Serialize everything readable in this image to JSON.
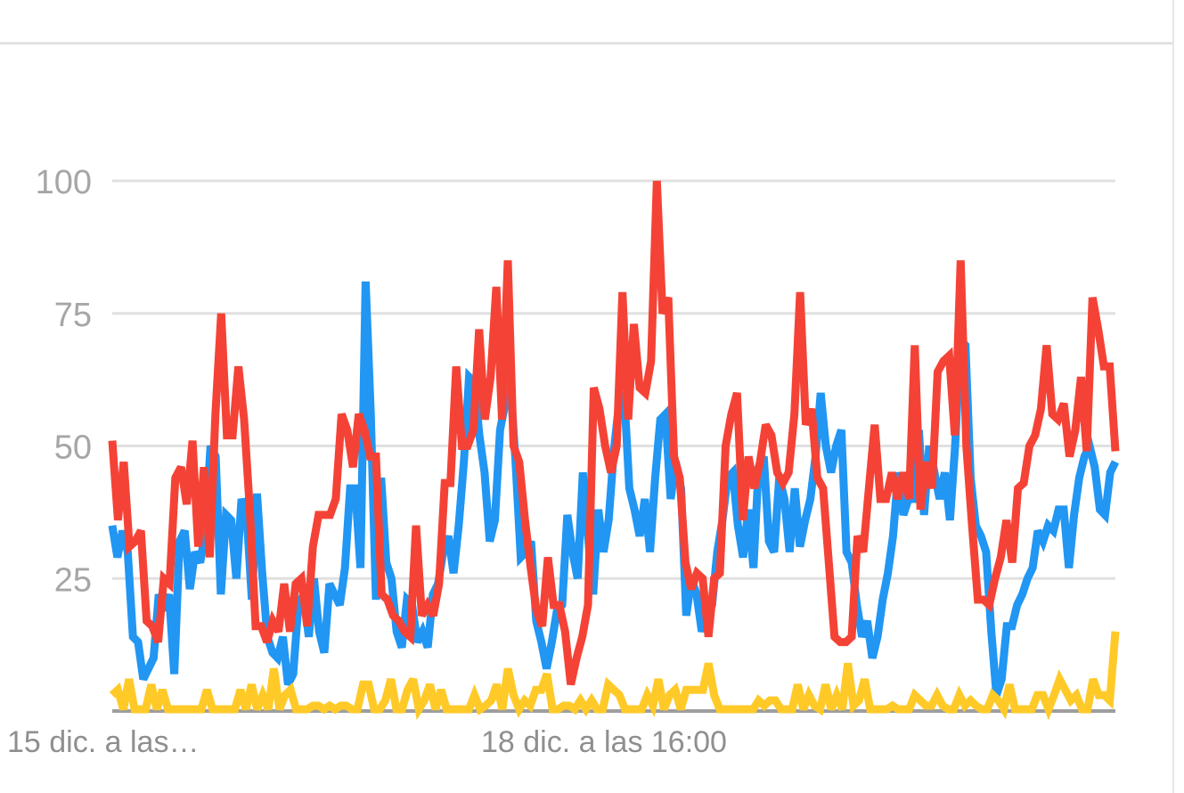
{
  "chart_data": {
    "type": "line",
    "title": "",
    "xlabel": "",
    "ylabel": "",
    "ylim": [
      0,
      100
    ],
    "yticks": [
      25,
      50,
      75,
      100
    ],
    "ytick_labels": [
      "25",
      "50",
      "75",
      "100"
    ],
    "x_tick_labels": [
      "15 dic. a las…",
      "18 dic. a las 16:00"
    ],
    "grid": true,
    "series": [
      {
        "color": "#2196f3",
        "values": [
          35,
          29,
          34,
          30,
          14,
          13,
          6,
          8,
          10,
          22,
          19,
          22,
          7,
          32,
          34,
          23,
          30,
          28,
          34,
          50,
          48,
          22,
          37,
          36,
          25,
          40,
          37,
          21,
          41,
          26,
          14,
          11,
          10,
          14,
          5,
          7,
          20,
          22,
          14,
          25,
          15,
          11,
          24,
          22,
          20,
          27,
          42,
          42,
          27,
          81,
          56,
          21,
          44,
          28,
          25,
          15,
          12,
          21,
          20,
          13,
          15,
          12,
          22,
          24,
          30,
          33,
          26,
          35,
          47,
          63,
          62,
          52,
          45,
          32,
          36,
          53,
          58,
          62,
          47,
          29,
          30,
          32,
          17,
          13,
          8,
          13,
          19,
          20,
          37,
          30,
          25,
          45,
          33,
          22,
          38,
          30,
          36,
          49,
          58,
          60,
          42,
          38,
          33,
          40,
          30,
          44,
          55,
          56,
          40,
          47,
          42,
          18,
          25,
          22,
          15,
          18,
          20,
          30,
          36,
          44,
          45,
          35,
          29,
          38,
          27,
          46,
          48,
          32,
          30,
          44,
          40,
          30,
          42,
          31,
          36,
          40,
          48,
          60,
          50,
          45,
          50,
          53,
          30,
          28,
          20,
          14,
          17,
          10,
          14,
          21,
          26,
          33,
          45,
          37,
          40,
          40,
          53,
          37,
          50,
          45,
          40,
          45,
          36,
          50,
          70,
          69,
          44,
          35,
          33,
          30,
          15,
          3,
          6,
          16,
          16,
          20,
          22,
          25,
          27,
          34,
          32,
          35,
          34,
          38,
          38,
          27,
          37,
          44,
          48,
          50,
          46,
          38,
          37,
          45,
          47
        ]
      },
      {
        "color": "#f44336",
        "values": [
          51,
          36,
          47,
          31,
          32,
          34,
          17,
          16,
          13,
          25,
          24,
          44,
          46,
          39,
          51,
          31,
          46,
          29,
          56,
          75,
          52,
          52,
          65,
          55,
          38,
          16,
          16,
          13,
          17,
          15,
          24,
          15,
          24,
          25,
          16,
          31,
          37,
          37,
          37,
          40,
          56,
          53,
          46,
          56,
          53,
          48,
          48,
          22,
          21,
          18,
          17,
          15,
          14,
          35,
          18,
          20,
          18,
          24,
          43,
          43,
          65,
          50,
          50,
          53,
          72,
          55,
          63,
          80,
          55,
          85,
          50,
          47,
          36,
          27,
          19,
          16,
          29,
          20,
          20,
          15,
          5,
          10,
          14,
          20,
          61,
          57,
          50,
          45,
          50,
          79,
          55,
          73,
          61,
          60,
          66,
          100,
          75,
          78,
          48,
          44,
          28,
          23,
          26,
          25,
          14,
          25,
          26,
          50,
          56,
          60,
          36,
          48,
          42,
          47,
          54,
          52,
          45,
          43,
          45,
          56,
          79,
          54,
          57,
          44,
          42,
          28,
          14,
          13,
          13,
          14,
          33,
          30,
          42,
          54,
          40,
          40,
          45,
          40,
          45,
          40,
          69,
          38,
          47,
          42,
          64,
          66,
          67,
          52,
          85,
          50,
          35,
          21,
          21,
          20,
          25,
          29,
          36,
          28,
          42,
          43,
          50,
          52,
          57,
          69,
          56,
          55,
          58,
          48,
          53,
          63,
          49,
          78,
          72,
          65,
          65,
          49
        ]
      },
      {
        "color": "#ffca28",
        "values": [
          3,
          4,
          0,
          6,
          0,
          0,
          0,
          5,
          0,
          4,
          0,
          0,
          0,
          0,
          0,
          0,
          0,
          4,
          0,
          0,
          0,
          0,
          0,
          4,
          0,
          5,
          0,
          3,
          0,
          8,
          0,
          3,
          4,
          0,
          0,
          0,
          1,
          1,
          0,
          1,
          0,
          1,
          1,
          0,
          0,
          5,
          5,
          0,
          0,
          2,
          6,
          0,
          0,
          4,
          6,
          0,
          2,
          5,
          0,
          4,
          0,
          0,
          0,
          0,
          0,
          3,
          0,
          1,
          2,
          5,
          0,
          8,
          3,
          0,
          2,
          1,
          4,
          4,
          7,
          0,
          0,
          1,
          1,
          0,
          2,
          0,
          2,
          0,
          0,
          5,
          4,
          3,
          0,
          0,
          0,
          0,
          3,
          1,
          6,
          0,
          3,
          4,
          0,
          4,
          4,
          4,
          4,
          9,
          3,
          0,
          0,
          0,
          0,
          0,
          0,
          0,
          2,
          1,
          2,
          2,
          0,
          0,
          0,
          5,
          0,
          3,
          1,
          0,
          5,
          0,
          3,
          0,
          9,
          1,
          2,
          6,
          0,
          0,
          0,
          0,
          1,
          0,
          0,
          0,
          3,
          2,
          1,
          1,
          3,
          1,
          0,
          0,
          3,
          1,
          2,
          1,
          0,
          0,
          3,
          2,
          0,
          5,
          0,
          0,
          0,
          0,
          3,
          3,
          0,
          3,
          6,
          4,
          2,
          3,
          0,
          0,
          6,
          3,
          3,
          2,
          15
        ]
      }
    ]
  }
}
